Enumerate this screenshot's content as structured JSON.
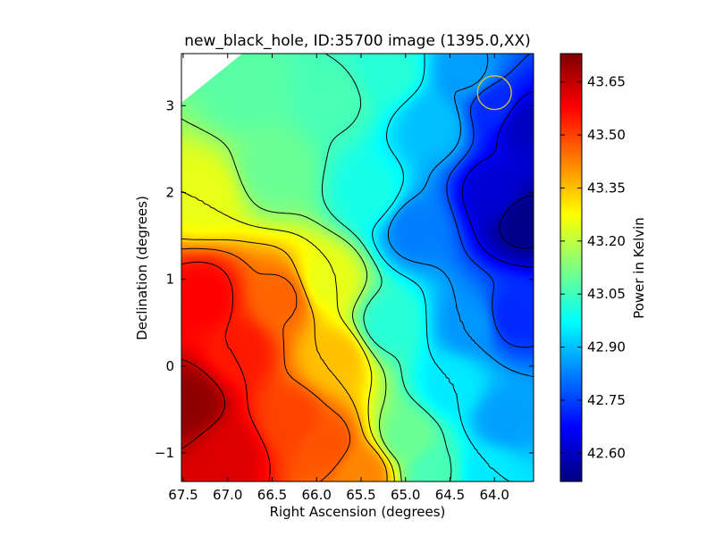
{
  "chart_data": {
    "type": "heatmap",
    "title": "new_black_hole, ID:35700 image (1395.0,XX)",
    "xlabel": "Right Ascension (degrees)",
    "ylabel": "Declination (degrees)",
    "xlim": [
      67.52,
      63.56
    ],
    "ylim": [
      -1.33,
      3.6
    ],
    "x_ticks": [
      67.5,
      67.0,
      66.5,
      66.0,
      65.5,
      65.0,
      64.5,
      64.0
    ],
    "x_tick_labels": [
      "67.5",
      "67.0",
      "66.5",
      "66.0",
      "65.5",
      "65.0",
      "64.5",
      "64.0"
    ],
    "y_ticks": [
      -1,
      0,
      1,
      2,
      3
    ],
    "y_tick_labels": [
      "−1",
      "0",
      "1",
      "2",
      "3"
    ],
    "grid": false,
    "colormap": "jet",
    "colorbar": {
      "label": "Power in Kelvin",
      "range": [
        42.52,
        43.73
      ],
      "ticks": [
        42.6,
        42.75,
        42.9,
        43.05,
        43.2,
        43.35,
        43.5,
        43.65
      ],
      "tick_labels": [
        "42.60",
        "42.75",
        "42.90",
        "43.05",
        "43.20",
        "43.35",
        "43.50",
        "43.65"
      ]
    },
    "field_points": [
      {
        "ra": 67.45,
        "dec": -0.4,
        "value": 43.71
      },
      {
        "ra": 67.3,
        "dec": 0.8,
        "value": 43.58
      },
      {
        "ra": 67.0,
        "dec": -1.0,
        "value": 43.62
      },
      {
        "ra": 66.9,
        "dec": 0.2,
        "value": 43.55
      },
      {
        "ra": 66.4,
        "dec": 0.8,
        "value": 43.46
      },
      {
        "ra": 66.3,
        "dec": -0.6,
        "value": 43.5
      },
      {
        "ra": 65.9,
        "dec": -0.9,
        "value": 43.48
      },
      {
        "ra": 65.5,
        "dec": -1.2,
        "value": 43.42
      },
      {
        "ra": 65.8,
        "dec": 0.1,
        "value": 43.35
      },
      {
        "ra": 65.9,
        "dec": 1.0,
        "value": 43.25
      },
      {
        "ra": 67.3,
        "dec": 2.0,
        "value": 43.25
      },
      {
        "ra": 66.5,
        "dec": 2.3,
        "value": 43.1
      },
      {
        "ra": 66.8,
        "dec": 3.2,
        "value": 43.08
      },
      {
        "ra": 65.8,
        "dec": 3.1,
        "value": 43.06
      },
      {
        "ra": 65.2,
        "dec": 3.4,
        "value": 43.02
      },
      {
        "ra": 65.4,
        "dec": 2.0,
        "value": 43.0
      },
      {
        "ra": 65.2,
        "dec": 0.5,
        "value": 43.02
      },
      {
        "ra": 65.0,
        "dec": -0.8,
        "value": 43.1
      },
      {
        "ra": 64.7,
        "dec": -1.2,
        "value": 43.06
      },
      {
        "ra": 64.5,
        "dec": -0.2,
        "value": 42.95
      },
      {
        "ra": 64.3,
        "dec": 0.5,
        "value": 42.85
      },
      {
        "ra": 64.9,
        "dec": 1.6,
        "value": 42.82
      },
      {
        "ra": 64.7,
        "dec": 2.8,
        "value": 42.9
      },
      {
        "ra": 64.3,
        "dec": 3.4,
        "value": 42.86
      },
      {
        "ra": 64.0,
        "dec": 3.0,
        "value": 42.72
      },
      {
        "ra": 64.0,
        "dec": 2.0,
        "value": 42.62
      },
      {
        "ra": 63.7,
        "dec": 1.7,
        "value": 42.53
      },
      {
        "ra": 63.7,
        "dec": 2.8,
        "value": 42.6
      },
      {
        "ra": 63.8,
        "dec": 0.6,
        "value": 42.72
      },
      {
        "ra": 63.9,
        "dec": -0.6,
        "value": 42.86
      },
      {
        "ra": 64.1,
        "dec": -1.2,
        "value": 42.95
      }
    ],
    "contour_levels": [
      42.55,
      42.65,
      42.75,
      42.85,
      42.95,
      43.05,
      43.15,
      43.25,
      43.35,
      43.45,
      43.55,
      43.65
    ],
    "contour_color": "#000000",
    "overlay_circle": {
      "ra": 64.0,
      "dec": 3.15,
      "radius_deg": 0.19,
      "color": "#d8c53a"
    }
  }
}
